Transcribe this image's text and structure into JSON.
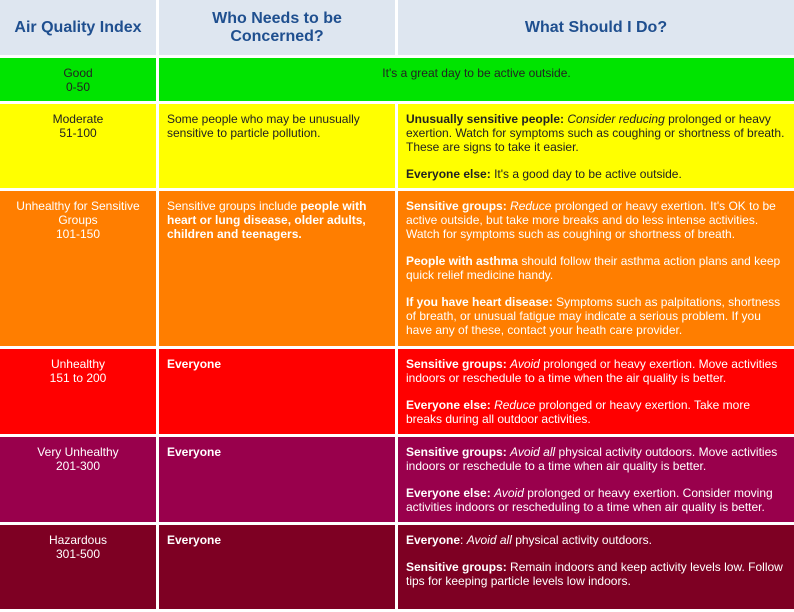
{
  "header": {
    "col1": "Air Quality Index",
    "col2": "Who Needs to be Concerned?",
    "col3": "What Should I Do?"
  },
  "colors": {
    "header_bg": "#dee6f0",
    "header_text": "#1f4f8f",
    "good": "#00e400",
    "moderate": "#ffff00",
    "usg": "#ff7e00",
    "unhealthy": "#ff0000",
    "very_unhealthy": "#99004c",
    "hazardous": "#7e0023"
  },
  "rows": {
    "good": {
      "level": "Good",
      "range": "0-50",
      "advice": "It's a great day to be active outside."
    },
    "moderate": {
      "level": "Moderate",
      "range": "51-100",
      "who": "Some people who may be unusually sensitive to particle pollution.",
      "a1_bold": "Unusually sensitive people:",
      "a1_italic": "Consider reducing",
      "a1_rest": "prolonged or heavy exertion. Watch for symptoms such as coughing or shortness of breath. These are signs to take it easier.",
      "a2_bold": "Everyone else:",
      "a2_rest": "It's a good day to be active outside."
    },
    "usg": {
      "level_line1": "Unhealthy for Sensitive Groups",
      "range": "101-150",
      "who_plain": "Sensitive groups include",
      "who_bold": "people with heart or lung disease, older adults, children and teenagers.",
      "a1_bold": "Sensitive groups:",
      "a1_italic": "Reduce",
      "a1_rest": "prolonged or heavy exertion. It's OK to be active outside, but take more breaks and do less intense activities. Watch for symptoms such as coughing or shortness of breath.",
      "a2_bold": "People with asthma",
      "a2_rest": "should follow their asthma action plans and keep quick relief medicine handy.",
      "a3_bold": "If you have heart disease:",
      "a3_rest": "Symptoms such as palpitations, shortness of breath, or unusual fatigue may indicate a serious problem. If you have any of these, contact your heath care provider."
    },
    "unhealthy": {
      "level": "Unhealthy",
      "range": "151 to 200",
      "who": "Everyone",
      "a1_bold": "Sensitive groups:",
      "a1_italic": "Avoid",
      "a1_rest": "prolonged or heavy exertion. Move activities indoors or reschedule to a time when the air quality is better.",
      "a2_bold": "Everyone else:",
      "a2_italic": "Reduce",
      "a2_rest": "prolonged or heavy exertion. Take more breaks during all outdoor activities."
    },
    "very_unhealthy": {
      "level": "Very Unhealthy",
      "range": "201-300",
      "who": "Everyone",
      "a1_bold": "Sensitive groups:",
      "a1_italic": "Avoid all",
      "a1_rest": "physical activity outdoors. Move activities indoors or reschedule to a time when air quality is better.",
      "a2_bold": "Everyone else:",
      "a2_italic": "Avoid",
      "a2_rest": "prolonged or heavy exertion. Consider moving activities indoors or rescheduling to a time when air quality is better."
    },
    "hazardous": {
      "level": "Hazardous",
      "range": "301-500",
      "who": "Everyone",
      "a1_bold": "Everyone",
      "a1_colon": ":",
      "a1_italic": "Avoid all",
      "a1_rest": "physical activity outdoors.",
      "a2_bold": "Sensitive groups:",
      "a2_rest": "Remain indoors and keep activity levels low. Follow tips for keeping particle levels low indoors."
    }
  }
}
